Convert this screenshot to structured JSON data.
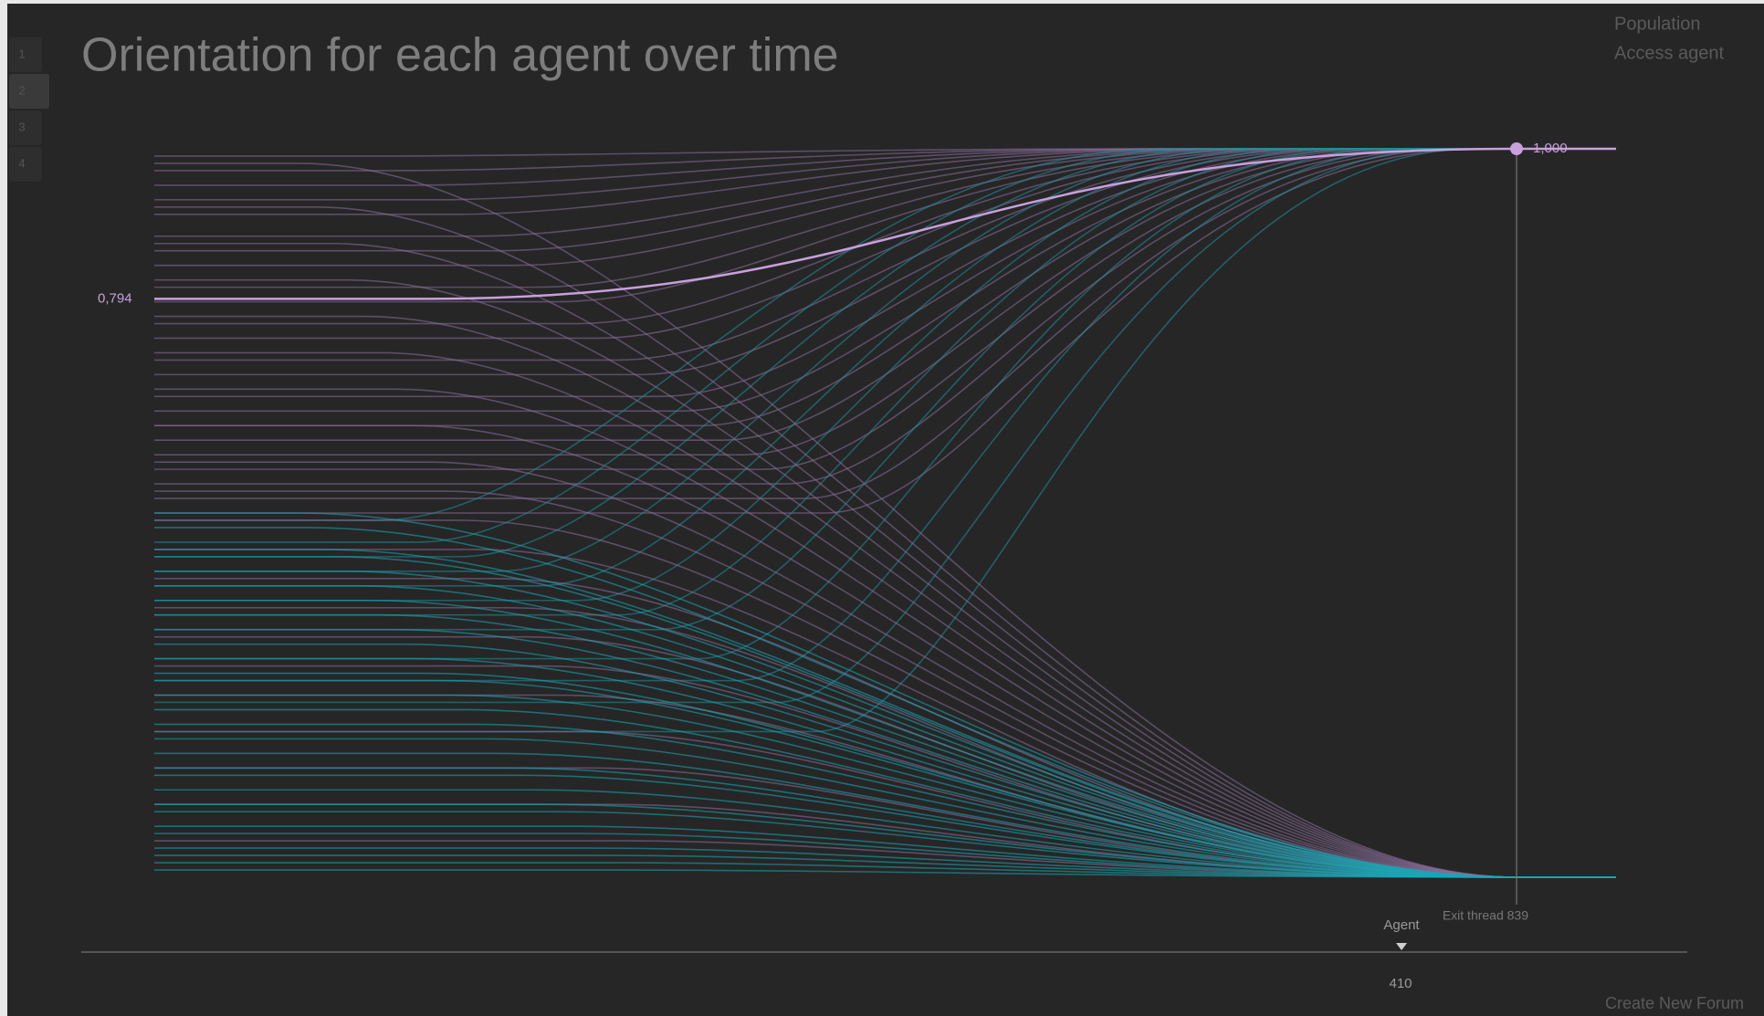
{
  "tabs": [
    "1",
    "2",
    "3",
    "4"
  ],
  "menu": [
    "Population",
    "Access agent"
  ],
  "footer_link": "Create New Forum",
  "chart_data": {
    "type": "line",
    "title": "Orientation for each agent over time",
    "ylim": [
      0,
      1
    ],
    "series": [
      {
        "color": "#8a6f9c",
        "end": 1,
        "start_values": [
          0.99,
          0.97,
          0.95,
          0.93,
          0.91,
          0.88,
          0.86,
          0.84,
          0.81,
          0.79,
          0.76,
          0.74,
          0.71,
          0.69,
          0.66,
          0.64,
          0.62,
          0.6,
          0.58,
          0.56,
          0.54,
          0.52,
          0.5
        ]
      },
      {
        "color": "#1f8f9c",
        "end": 1,
        "start_values": [
          0.49,
          0.46,
          0.44,
          0.42,
          0.4,
          0.38,
          0.36,
          0.34,
          0.3,
          0.27,
          0.24,
          0.2
        ]
      },
      {
        "color": "#8a6f9c",
        "end": 0,
        "start_values": [
          0.98,
          0.92,
          0.87,
          0.82,
          0.77,
          0.72,
          0.67,
          0.62,
          0.57,
          0.53,
          0.49,
          0.45,
          0.41,
          0.37,
          0.33,
          0.29,
          0.25,
          0.2,
          0.15,
          0.1,
          0.05
        ]
      },
      {
        "color": "#1aa7b6",
        "end": 0,
        "start_values": [
          0.5,
          0.48,
          0.45,
          0.44,
          0.42,
          0.4,
          0.38,
          0.36,
          0.34,
          0.32,
          0.3,
          0.28,
          0.27,
          0.25,
          0.23,
          0.21,
          0.19,
          0.17,
          0.15,
          0.14,
          0.12,
          0.1,
          0.09,
          0.07,
          0.06,
          0.04,
          0.03,
          0.02,
          0.01
        ]
      }
    ],
    "highlight": {
      "color": "#c9a0dc",
      "start": 0.794,
      "end": 1.0,
      "value_labels": [
        "0,794",
        "1,000"
      ]
    },
    "cursor_label": "Exit thread 839",
    "agent_label": "Agent",
    "agent_value": "410"
  }
}
